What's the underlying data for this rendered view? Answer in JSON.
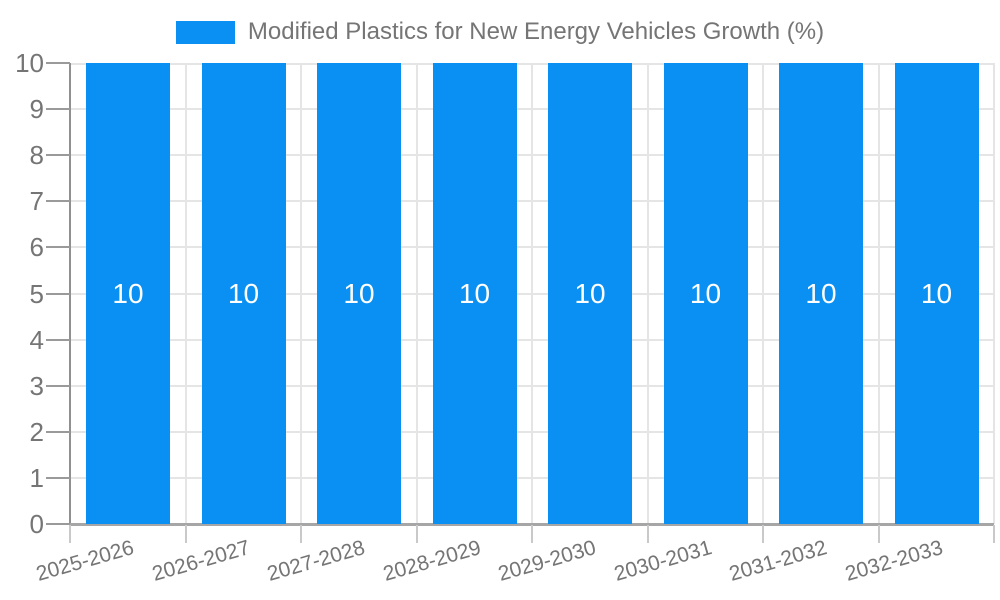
{
  "legend": {
    "label": "Modified Plastics for New Energy Vehicles Growth (%)"
  },
  "chart_data": {
    "type": "bar",
    "title": "Modified Plastics for New Energy Vehicles Growth (%)",
    "categories": [
      "2025-2026",
      "2026-2027",
      "2027-2028",
      "2028-2029",
      "2029-2030",
      "2030-2031",
      "2031-2032",
      "2032-2033"
    ],
    "series": [
      {
        "name": "Modified Plastics for New Energy Vehicles Growth (%)",
        "values": [
          10,
          10,
          10,
          10,
          10,
          10,
          10,
          10
        ]
      }
    ],
    "bar_value_labels": [
      "10",
      "10",
      "10",
      "10",
      "10",
      "10",
      "10",
      "10"
    ],
    "xlabel": "",
    "ylabel": "",
    "ylim": [
      0,
      10
    ],
    "yticks": [
      0,
      1,
      2,
      3,
      4,
      5,
      6,
      7,
      8,
      9,
      10
    ],
    "grid": "horizontal integer gridlines + vertical category-boundary gridlines",
    "legend_position": "top-center",
    "x_tick_rotation_deg": -16
  },
  "colors": {
    "bar": "#0a90f2",
    "bar_label": "#ffffff",
    "axis_text": "#757575",
    "gridline": "#e5e5e5",
    "axis_line_y": "#909090",
    "axis_line_x": "#a6a6a6",
    "tick_below_axis": "#c9c9c9",
    "y_tick_dash": "#9a9a9a"
  }
}
